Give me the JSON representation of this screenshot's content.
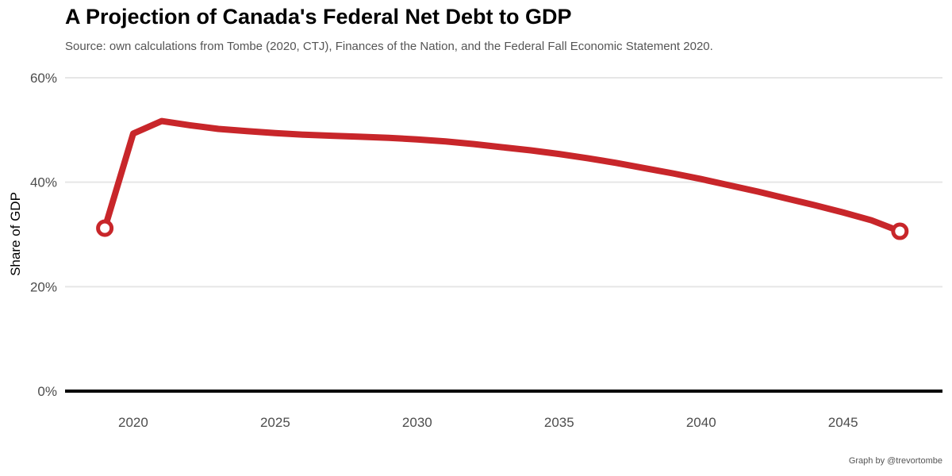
{
  "chart_data": {
    "type": "line",
    "title": "A Projection of Canada's Federal Net Debt to GDP",
    "subtitle": "Source: own calculations from Tombe (2020, CTJ), Finances of the Nation, and the Federal Fall Economic Statement 2020.",
    "caption": "Graph by @trevortombe",
    "xlabel": "",
    "ylabel": "Share of GDP",
    "xlim": [
      2017.6,
      2048.5
    ],
    "ylim": [
      0,
      60
    ],
    "x_ticks": [
      2020,
      2025,
      2030,
      2035,
      2040,
      2045
    ],
    "y_ticks": [
      0,
      20,
      40,
      60
    ],
    "y_tick_labels": [
      "0%",
      "20%",
      "40%",
      "60%"
    ],
    "grid": "horizontal major",
    "series": [
      {
        "name": "Federal net debt to GDP",
        "color": "#c8262a",
        "x": [
          2019,
          2020,
          2021,
          2022,
          2023,
          2024,
          2025,
          2026,
          2027,
          2028,
          2029,
          2030,
          2031,
          2032,
          2033,
          2034,
          2035,
          2036,
          2037,
          2038,
          2039,
          2040,
          2041,
          2042,
          2043,
          2044,
          2045,
          2046,
          2047
        ],
        "values": [
          31.2,
          49.3,
          51.7,
          50.9,
          50.2,
          49.8,
          49.4,
          49.1,
          48.9,
          48.7,
          48.5,
          48.2,
          47.8,
          47.3,
          46.7,
          46.1,
          45.4,
          44.6,
          43.7,
          42.7,
          41.7,
          40.6,
          39.4,
          38.2,
          36.9,
          35.6,
          34.2,
          32.7,
          30.6
        ]
      }
    ],
    "endpoint_markers": [
      {
        "x": 2019,
        "value": 31.2
      },
      {
        "x": 2047,
        "value": 30.6
      }
    ]
  }
}
